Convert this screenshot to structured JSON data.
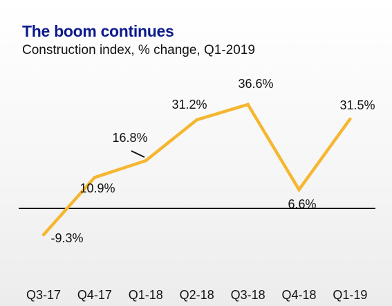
{
  "header": {
    "title": "The boom continues",
    "subtitle": "Construction index, % change, Q1-2019"
  },
  "chart_data": {
    "type": "line",
    "title": "The boom continues",
    "subtitle": "Construction index, % change, Q1-2019",
    "xlabel": "",
    "ylabel": "",
    "categories": [
      "Q3-17",
      "Q4-17",
      "Q1-18",
      "Q2-18",
      "Q3-18",
      "Q4-18",
      "Q1-19"
    ],
    "series": [
      {
        "values": [
          -9.3,
          10.9,
          16.8,
          31.2,
          36.6,
          6.6,
          31.5
        ],
        "data_labels": [
          "-9.3%",
          "10.9%",
          "16.8%",
          "31.2%",
          "36.6%",
          "6.6%",
          "31.5%"
        ],
        "color": "#f5b731"
      }
    ],
    "ylim": [
      -10,
      37
    ],
    "zero_line": true,
    "grid": false,
    "legend": "none",
    "line_color": "#f5b731",
    "zero_line_color": "#111111"
  }
}
